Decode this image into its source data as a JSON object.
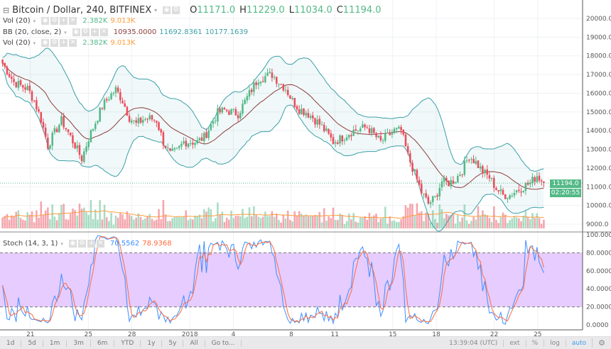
{
  "header": {
    "symbol": "Bitcoin / Dollar, 240, BITFINEX",
    "o_label": "O",
    "o": "11171.0",
    "h_label": "H",
    "h": "11229.0",
    "l_label": "L",
    "l": "11034.0",
    "c_label": "C",
    "c": "11194.0"
  },
  "indicators": [
    {
      "label": "Vol (20)",
      "v1": "2.382K",
      "v2": "9.013K"
    },
    {
      "label": "BB (20, close, 2)",
      "v1": "10935.0000",
      "v2": "11692.8361",
      "v3": "10177.1639"
    },
    {
      "label": "Vol (20)",
      "v1": "2.382K",
      "v2": "9.013K"
    }
  ],
  "stoch": {
    "label": "Stoch (14, 3, 1)",
    "k": "70.5562",
    "d": "78.9368"
  },
  "price_tag": "11194.0",
  "countdown": "02:20:55",
  "colors": {
    "up": "#53b987",
    "down": "#eb4d5c",
    "bb_band": "#3ba0a8",
    "bb_basis": "#8d3e3e",
    "stoch_k": "#3d8fff",
    "stoch_d": "#ff6a3d",
    "stoch_fill": "#e6ccff"
  },
  "chart_data": {
    "type": "candlestick",
    "start": "2017-12-19 00:00",
    "interval": "12h",
    "closes": [
      17800,
      17200,
      16600,
      16400,
      16250,
      15600,
      14600,
      13200,
      13900,
      14550,
      13900,
      13200,
      12500,
      13600,
      14450,
      15300,
      15800,
      16200,
      15600,
      14700,
      14350,
      14600,
      14650,
      14550,
      13400,
      12750,
      12900,
      13400,
      13400,
      13400,
      13650,
      14300,
      14950,
      15100,
      15000,
      14900,
      15550,
      16200,
      16800,
      16900,
      17000,
      16600,
      16250,
      15600,
      15150,
      15000,
      14700,
      14350,
      13900,
      13400,
      13550,
      13800,
      14000,
      14100,
      14200,
      13800,
      13400,
      13700,
      14000,
      14000,
      12650,
      11700,
      10700,
      10100,
      10400,
      11300,
      11200,
      11400,
      11900,
      12650,
      12300,
      11800,
      11500,
      10900,
      10550,
      10550,
      10800,
      11000,
      11200,
      11600,
      11194
    ],
    "price_axis": {
      "range": [
        8600,
        20600
      ],
      "ticks": [
        "20000.0",
        "19000.0",
        "18000.0",
        "17000.0",
        "16000.0",
        "15000.0",
        "14000.0",
        "13000.0",
        "12000.0",
        "11000.0",
        "10000.0",
        "9000.0"
      ]
    },
    "stoch_axis": {
      "range": [
        0,
        100
      ],
      "ticks": [
        "100.0000",
        "80.0000",
        "60.0000",
        "40.0000",
        "20.0000",
        "0.0000"
      ]
    },
    "x_ticks": [
      {
        "label": "21",
        "day": 2
      },
      {
        "label": "25",
        "day": 6
      },
      {
        "label": "28",
        "day": 9
      },
      {
        "label": "2018",
        "day": 13
      },
      {
        "label": "4",
        "day": 16
      },
      {
        "label": "8",
        "day": 20
      },
      {
        "label": "11",
        "day": 23
      },
      {
        "label": "15",
        "day": 27
      },
      {
        "label": "18",
        "day": 30
      },
      {
        "label": "22",
        "day": 34
      },
      {
        "label": "25",
        "day": 37
      }
    ],
    "grid": true
  },
  "toolbar": {
    "ranges": [
      "1d",
      "5d",
      "1m",
      "3m",
      "6m",
      "YTD",
      "1y",
      "5y",
      "All",
      "Go to..."
    ],
    "time": "13:39:04 (UTC)",
    "ext": "ext",
    "pct": "%",
    "log": "log",
    "auto": "auto"
  }
}
